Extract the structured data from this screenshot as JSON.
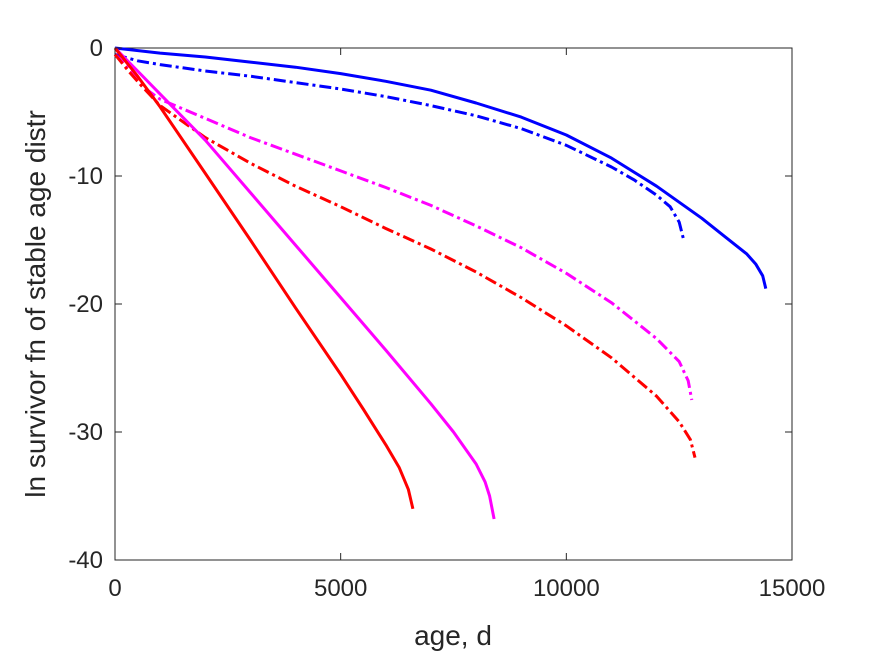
{
  "chart_data": {
    "type": "line",
    "title": "",
    "xlabel": "age, d",
    "ylabel": "ln survivor fn of stable age distr",
    "xlim": [
      0,
      15000
    ],
    "ylim": [
      -40,
      0
    ],
    "xticks": [
      0,
      5000,
      10000,
      15000
    ],
    "yticks": [
      0,
      -10,
      -20,
      -30,
      -40
    ],
    "xtick_labels": [
      "0",
      "5000",
      "10000",
      "15000"
    ],
    "ytick_labels": [
      "0",
      "-10",
      "-20",
      "-30",
      "-40"
    ],
    "grid": false,
    "legend": "none",
    "series": [
      {
        "color": "#0000ff",
        "style": "solid",
        "points": [
          [
            0,
            0
          ],
          [
            1000,
            -0.4
          ],
          [
            2000,
            -0.7
          ],
          [
            3000,
            -1.1
          ],
          [
            4000,
            -1.5
          ],
          [
            5000,
            -2.0
          ],
          [
            6000,
            -2.6
          ],
          [
            7000,
            -3.3
          ],
          [
            8000,
            -4.3
          ],
          [
            9000,
            -5.4
          ],
          [
            10000,
            -6.8
          ],
          [
            11000,
            -8.6
          ],
          [
            12000,
            -10.8
          ],
          [
            13000,
            -13.3
          ],
          [
            13500,
            -14.7
          ],
          [
            14000,
            -16.1
          ],
          [
            14200,
            -16.9
          ],
          [
            14350,
            -17.8
          ],
          [
            14420,
            -18.8
          ]
        ]
      },
      {
        "color": "#0000ff",
        "style": "dashdot",
        "points": [
          [
            0,
            -0.5
          ],
          [
            500,
            -1.0
          ],
          [
            1000,
            -1.3
          ],
          [
            2000,
            -1.8
          ],
          [
            3000,
            -2.2
          ],
          [
            4000,
            -2.7
          ],
          [
            5000,
            -3.2
          ],
          [
            6000,
            -3.8
          ],
          [
            7000,
            -4.5
          ],
          [
            8000,
            -5.3
          ],
          [
            9000,
            -6.3
          ],
          [
            10000,
            -7.6
          ],
          [
            11000,
            -9.3
          ],
          [
            11500,
            -10.3
          ],
          [
            12000,
            -11.5
          ],
          [
            12300,
            -12.4
          ],
          [
            12500,
            -13.6
          ],
          [
            12600,
            -15.0
          ]
        ]
      },
      {
        "color": "#ff00ff",
        "style": "dashdot",
        "points": [
          [
            0,
            -0.5
          ],
          [
            300,
            -1.5
          ],
          [
            600,
            -3.0
          ],
          [
            1000,
            -4.0
          ],
          [
            2000,
            -5.5
          ],
          [
            3000,
            -7.0
          ],
          [
            4000,
            -8.3
          ],
          [
            5000,
            -9.6
          ],
          [
            6000,
            -10.9
          ],
          [
            7000,
            -12.3
          ],
          [
            8000,
            -13.9
          ],
          [
            9000,
            -15.6
          ],
          [
            10000,
            -17.6
          ],
          [
            11000,
            -19.9
          ],
          [
            12000,
            -22.7
          ],
          [
            12500,
            -24.5
          ],
          [
            12700,
            -26.0
          ],
          [
            12780,
            -27.5
          ]
        ]
      },
      {
        "color": "#ff0000",
        "style": "dashdot",
        "points": [
          [
            0,
            -0.5
          ],
          [
            300,
            -1.8
          ],
          [
            600,
            -3.0
          ],
          [
            1000,
            -4.5
          ],
          [
            2000,
            -7.0
          ],
          [
            3000,
            -9.0
          ],
          [
            4000,
            -10.8
          ],
          [
            5000,
            -12.4
          ],
          [
            6000,
            -14.1
          ],
          [
            7000,
            -15.7
          ],
          [
            8000,
            -17.5
          ],
          [
            9000,
            -19.5
          ],
          [
            10000,
            -21.7
          ],
          [
            11000,
            -24.2
          ],
          [
            12000,
            -27.2
          ],
          [
            12500,
            -29.2
          ],
          [
            12750,
            -30.6
          ],
          [
            12850,
            -32.0
          ]
        ]
      },
      {
        "color": "#ff00ff",
        "style": "solid",
        "points": [
          [
            0,
            0
          ],
          [
            500,
            -1.8
          ],
          [
            1000,
            -3.6
          ],
          [
            2000,
            -7.2
          ],
          [
            3000,
            -11.3
          ],
          [
            4000,
            -15.4
          ],
          [
            5000,
            -19.5
          ],
          [
            6000,
            -23.6
          ],
          [
            7000,
            -27.8
          ],
          [
            7500,
            -30.0
          ],
          [
            8000,
            -32.5
          ],
          [
            8200,
            -33.9
          ],
          [
            8300,
            -35.0
          ],
          [
            8400,
            -36.8
          ]
        ]
      },
      {
        "color": "#ff0000",
        "style": "solid",
        "points": [
          [
            0,
            0
          ],
          [
            500,
            -2.2
          ],
          [
            1000,
            -4.6
          ],
          [
            2000,
            -9.8
          ],
          [
            3000,
            -15.0
          ],
          [
            4000,
            -20.3
          ],
          [
            5000,
            -25.5
          ],
          [
            5500,
            -28.2
          ],
          [
            6000,
            -31.0
          ],
          [
            6300,
            -32.8
          ],
          [
            6500,
            -34.5
          ],
          [
            6600,
            -36.0
          ]
        ]
      }
    ]
  }
}
